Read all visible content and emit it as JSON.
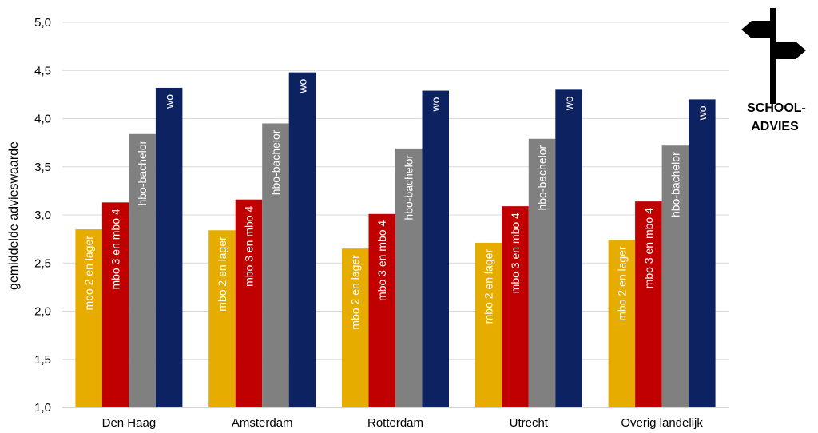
{
  "chart_data": {
    "type": "bar",
    "ylabel": "gemiddelde advieswaarde",
    "xlabel": "",
    "ylim": [
      1.0,
      5.0
    ],
    "yticks": [
      "1,0",
      "1,5",
      "2,0",
      "2,5",
      "3,0",
      "3,5",
      "4,0",
      "4,5",
      "5,0"
    ],
    "grid": true,
    "categories": [
      "Den Haag",
      "Amsterdam",
      "Rotterdam",
      "Utrecht",
      "Overig landelijk"
    ],
    "series": [
      {
        "name": "mbo 2 en lager",
        "color": "#E6AC00",
        "values": [
          2.85,
          2.84,
          2.65,
          2.71,
          2.74
        ]
      },
      {
        "name": "mbo 3 en mbo 4",
        "color": "#C00000",
        "values": [
          3.13,
          3.16,
          3.01,
          3.09,
          3.14
        ]
      },
      {
        "name": "hbo-bachelor",
        "color": "#808080",
        "values": [
          3.84,
          3.95,
          3.69,
          3.79,
          3.72
        ]
      },
      {
        "name": "wo",
        "color": "#0D2260",
        "values": [
          4.32,
          4.48,
          4.29,
          4.3,
          4.2
        ]
      }
    ]
  },
  "badge": {
    "icon": "signpost-icon",
    "line1": "SCHOOL-",
    "line2": "ADVIES"
  }
}
